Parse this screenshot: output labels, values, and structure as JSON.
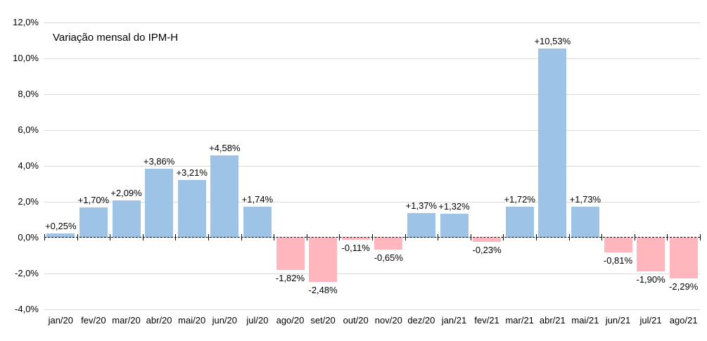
{
  "chart_data": {
    "type": "bar",
    "title": "Variação mensal do IPM-H",
    "xlabel": "",
    "ylabel": "",
    "categories": [
      "jan/20",
      "fev/20",
      "mar/20",
      "abr/20",
      "mai/20",
      "jun/20",
      "jul/20",
      "ago/20",
      "set/20",
      "out/20",
      "nov/20",
      "dez/20",
      "jan/21",
      "fev/21",
      "mar/21",
      "abr/21",
      "mai/21",
      "jun/21",
      "jul/21",
      "ago/21"
    ],
    "values": [
      0.25,
      1.7,
      2.09,
      3.86,
      3.21,
      4.58,
      1.74,
      -1.82,
      -2.48,
      -0.11,
      -0.65,
      1.37,
      1.32,
      -0.23,
      1.72,
      10.53,
      1.73,
      -0.81,
      -1.9,
      -2.29
    ],
    "point_labels": [
      "+0,25%",
      "+1,70%",
      "+2,09%",
      "+3,86%",
      "+3,21%",
      "+4,58%",
      "+1,74%",
      "-1,82%",
      "-2,48%",
      "-0,11%",
      "-0,65%",
      "+1,37%",
      "+1,32%",
      "-0,23%",
      "+1,72%",
      "+10,53%",
      "+1,73%",
      "-0,81%",
      "-1,90%",
      "-2,29%"
    ],
    "y_ticks": [
      {
        "label": "12,0%",
        "value": 12
      },
      {
        "label": "10,0%",
        "value": 10
      },
      {
        "label": "8,0%",
        "value": 8
      },
      {
        "label": "6,0%",
        "value": 6
      },
      {
        "label": "4,0%",
        "value": 4
      },
      {
        "label": "2,0%",
        "value": 2
      },
      {
        "label": "0,0%",
        "value": 0
      },
      {
        "label": "-2,0%",
        "value": -2
      },
      {
        "label": "-4,0%",
        "value": -4
      }
    ],
    "ylim": [
      -4,
      12
    ],
    "grid": true,
    "legend": "none",
    "colors": {
      "positive_bar": "#9DC3E6",
      "negative_bar": "#FFB6BC",
      "gridline": "#D9D9D9",
      "zero_line": "#000000",
      "text": "#000000",
      "background": "#FFFFFF"
    }
  }
}
